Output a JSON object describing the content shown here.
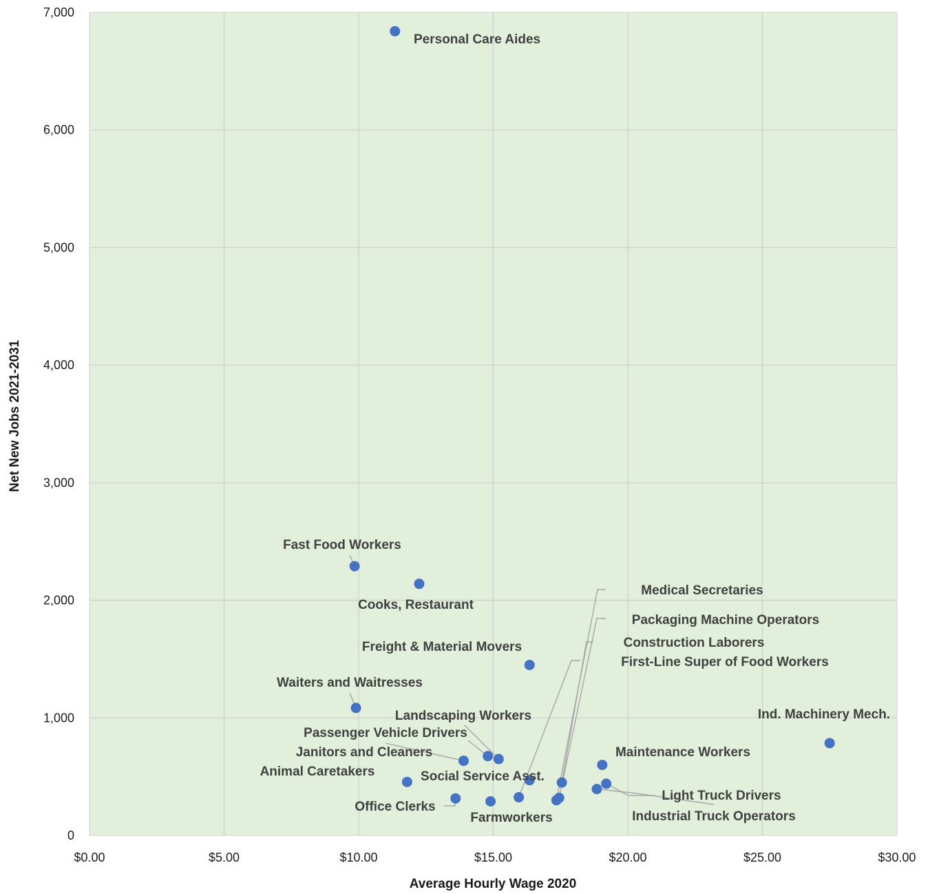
{
  "chart_data": {
    "type": "scatter",
    "xlabel": "Average Hourly Wage 2020",
    "ylabel": "Net New Jobs 2021-2031",
    "xlim": [
      0,
      30
    ],
    "ylim": [
      0,
      7000
    ],
    "x_ticks": [
      "$0.00",
      "$5.00",
      "$10.00",
      "$15.00",
      "$20.00",
      "$25.00",
      "$30.00"
    ],
    "y_ticks": [
      "0",
      "1,000",
      "2,000",
      "3,000",
      "4,000",
      "5,000",
      "6,000",
      "7,000"
    ],
    "grid": true,
    "background_color": "#e2efda",
    "marker_color": "#4472c4",
    "points": [
      {
        "label": "Personal Care Aides",
        "x": 11.35,
        "y": 6840
      },
      {
        "label": "Fast Food Workers",
        "x": 9.85,
        "y": 2290
      },
      {
        "label": "Cooks, Restaurant",
        "x": 12.25,
        "y": 2140
      },
      {
        "label": "Freight & Material Movers",
        "x": 16.35,
        "y": 1450
      },
      {
        "label": "Waiters and Waitresses",
        "x": 9.9,
        "y": 1085
      },
      {
        "label": "Landscaping Workers",
        "x": 15.2,
        "y": 650
      },
      {
        "label": "Passenger Vehicle Drivers",
        "x": 14.8,
        "y": 675
      },
      {
        "label": "Janitors and Cleaners",
        "x": 13.9,
        "y": 635
      },
      {
        "label": "Animal Caretakers",
        "x": 11.8,
        "y": 455
      },
      {
        "label": "Social Service Asst.",
        "x": 16.35,
        "y": 470
      },
      {
        "label": "Office Clerks",
        "x": 13.6,
        "y": 315
      },
      {
        "label": "Farmworkers",
        "x": 14.9,
        "y": 290
      },
      {
        "label": "Medical Secretaries",
        "x": 17.35,
        "y": 300
      },
      {
        "label": "Packaging Machine Operators",
        "x": 17.45,
        "y": 320
      },
      {
        "label": "Construction Laborers",
        "x": 17.55,
        "y": 450
      },
      {
        "label": "First-Line Super of Food Workers",
        "x": 15.95,
        "y": 325
      },
      {
        "label": "Maintenance Workers",
        "x": 19.05,
        "y": 600
      },
      {
        "label": "Light Truck Drivers",
        "x": 19.2,
        "y": 440
      },
      {
        "label": "Industrial Truck Operators",
        "x": 18.85,
        "y": 395
      },
      {
        "label": "Ind. Machinery Mech.",
        "x": 27.5,
        "y": 785
      }
    ]
  }
}
